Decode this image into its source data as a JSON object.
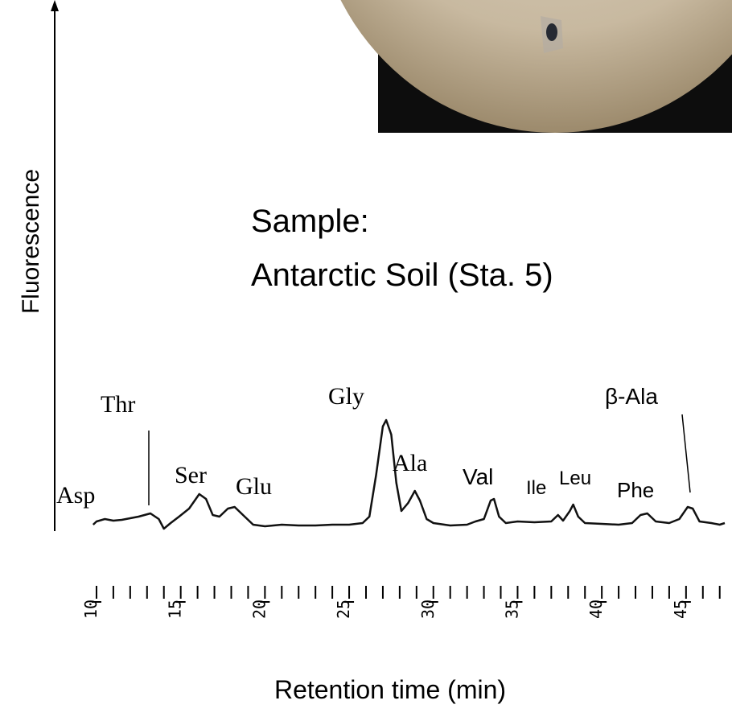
{
  "chart_data": {
    "type": "line",
    "title": "Sample:",
    "subtitle": "Antarctic Soil (Sta. 5)",
    "y_label": "Fluorescence",
    "x_label": "Retention time (min)",
    "color": "#111111",
    "xlim": [
      9.5,
      47.5
    ],
    "ylim": [
      0,
      650
    ],
    "xticks": [
      10,
      15,
      20,
      25,
      30,
      35,
      40,
      45
    ],
    "minor_xticks": [
      10,
      11,
      12,
      13,
      14,
      15,
      16,
      17,
      18,
      19,
      20,
      21,
      22,
      23,
      24,
      25,
      26,
      27,
      28,
      29,
      30,
      31,
      32,
      33,
      34,
      35,
      36,
      37,
      38,
      39,
      40,
      41,
      42,
      43,
      44,
      45,
      46,
      47
    ],
    "x": [
      9.8,
      10.0,
      10.5,
      11,
      11.5,
      12,
      12.5,
      13.2,
      13.7,
      14.0,
      14.4,
      14.9,
      15.5,
      16.1,
      16.5,
      16.9,
      17.3,
      17.8,
      18.2,
      18.8,
      19.3,
      20,
      21,
      22,
      23,
      24,
      25,
      25.8,
      26.2,
      26.6,
      27.0,
      27.2,
      27.5,
      27.8,
      28.1,
      28.5,
      28.9,
      29.2,
      29.6,
      30,
      31,
      32,
      32.5,
      33.0,
      33.4,
      33.6,
      33.9,
      34.3,
      35,
      36,
      37,
      37.4,
      37.7,
      38.1,
      38.3,
      38.6,
      39,
      40,
      41,
      41.8,
      42.3,
      42.7,
      43.2,
      44,
      44.6,
      45.1,
      45.4,
      45.8,
      46.5,
      47,
      47.3
    ],
    "values": [
      8,
      12,
      15,
      13,
      14,
      16,
      18,
      22,
      15,
      3,
      10,
      18,
      28,
      46,
      40,
      20,
      18,
      28,
      30,
      18,
      8,
      6,
      8,
      7,
      7,
      8,
      8,
      10,
      18,
      70,
      130,
      138,
      120,
      60,
      25,
      35,
      50,
      38,
      15,
      10,
      7,
      8,
      12,
      15,
      38,
      40,
      18,
      10,
      12,
      11,
      12,
      20,
      13,
      25,
      33,
      18,
      10,
      9,
      8,
      10,
      20,
      22,
      12,
      10,
      15,
      30,
      28,
      12,
      10,
      8,
      10
    ],
    "annotations": [
      {
        "text": "Asp"
      },
      {
        "text": "Thr"
      },
      {
        "text": "Ser"
      },
      {
        "text": "Glu"
      },
      {
        "text": "Gly"
      },
      {
        "text": "Ala"
      },
      {
        "text": "Val"
      },
      {
        "text": "Ile"
      },
      {
        "text": "Leu"
      },
      {
        "text": "Phe"
      },
      {
        "text": "β-Ala"
      }
    ]
  }
}
